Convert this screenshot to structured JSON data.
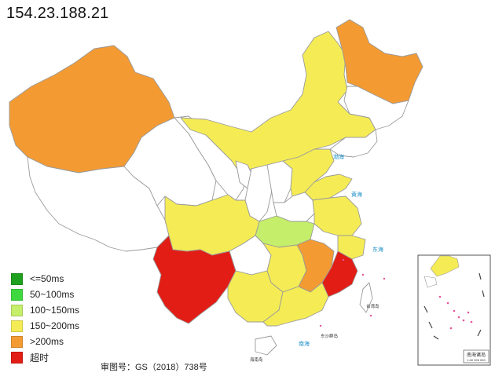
{
  "title": "154.23.188.21",
  "legend": [
    {
      "label": "<=50ms",
      "color": "#1fa01f"
    },
    {
      "label": "50~100ms",
      "color": "#3fd93f"
    },
    {
      "label": "100~150ms",
      "color": "#c5ee6a"
    },
    {
      "label": "150~200ms",
      "color": "#f5ec55"
    },
    {
      "label": ">200ms",
      "color": "#f39b32"
    },
    {
      "label": "超时",
      "color": "#e21d16"
    }
  ],
  "approval_number": "审图号：GS（2018）738号",
  "inset": {
    "label": "南海诸岛",
    "scale": "1:40 000 000"
  },
  "map_labels": {
    "bohai": "渤海",
    "huanghai": "黄海",
    "donghai": "东海",
    "nanhai": "南海",
    "taiwan": "台湾岛",
    "hainan": "海南岛",
    "dongsha": "东沙群岛"
  },
  "colors": {
    "province_stroke": "#9a9a9a",
    "white_fill": "#ffffff",
    "water_label": "#1e90c8"
  }
}
